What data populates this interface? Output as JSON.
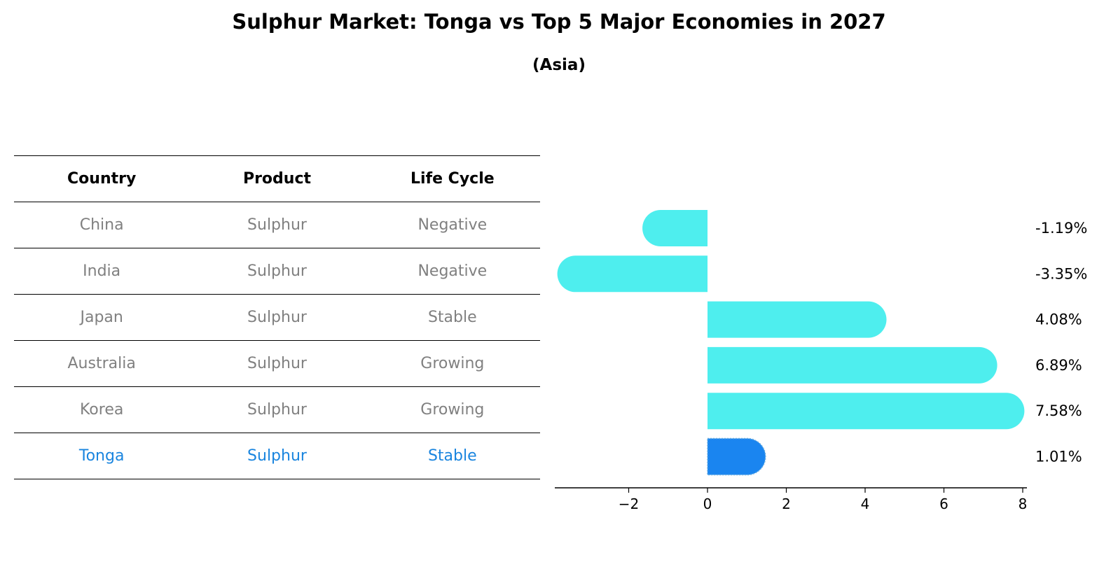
{
  "title": "Sulphur Market: Tonga vs Top 5 Major Economies in 2027",
  "subtitle": "(Asia)",
  "table": {
    "headers": [
      "Country",
      "Product",
      "Life Cycle"
    ],
    "rows": [
      {
        "country": "China",
        "product": "Sulphur",
        "life_cycle": "Negative"
      },
      {
        "country": "India",
        "product": "Sulphur",
        "life_cycle": "Negative"
      },
      {
        "country": "Japan",
        "product": "Sulphur",
        "life_cycle": "Stable"
      },
      {
        "country": "Australia",
        "product": "Sulphur",
        "life_cycle": "Growing"
      },
      {
        "country": "Korea",
        "product": "Sulphur",
        "life_cycle": "Growing"
      },
      {
        "country": "Tonga",
        "product": "Sulphur",
        "life_cycle": "Stable"
      }
    ],
    "highlight_row": "Tonga"
  },
  "colors": {
    "bar": "#4eeeee",
    "highlight_bar": "#1a85f0",
    "muted_text": "#808080",
    "highlight_text": "#1a85df"
  },
  "chart_data": {
    "type": "bar",
    "orientation": "horizontal",
    "categories": [
      "China",
      "India",
      "Japan",
      "Australia",
      "Korea",
      "Tonga"
    ],
    "values": [
      -1.19,
      -3.35,
      4.08,
      6.89,
      7.58,
      1.01
    ],
    "value_labels": [
      "-1.19%",
      "-3.35%",
      "4.08%",
      "6.89%",
      "7.58%",
      "1.01%"
    ],
    "highlight": "Tonga",
    "xticks": [
      -2,
      0,
      2,
      4,
      6,
      8
    ],
    "xtick_labels": [
      "−2",
      "0",
      "2",
      "4",
      "6",
      "8"
    ],
    "xlim": [
      -3.9,
      8.1
    ],
    "xlabel": "",
    "ylabel": ""
  }
}
